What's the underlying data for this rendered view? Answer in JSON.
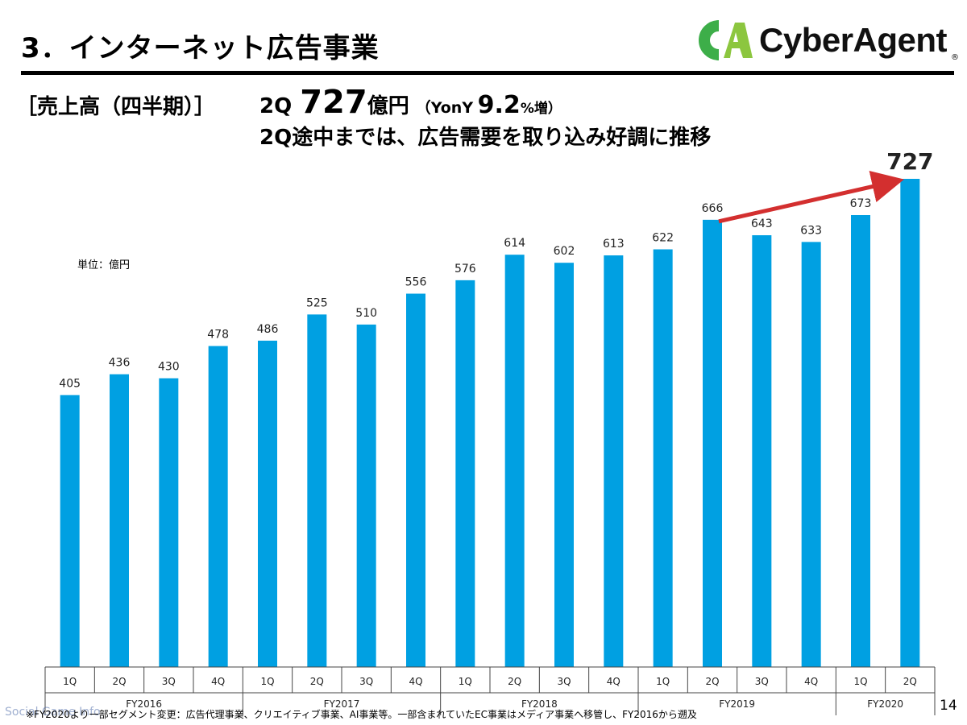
{
  "slide": {
    "title": "3．インターネット広告事業",
    "section_label": "［売上高（四半期）］",
    "headline": {
      "quarter": "2Q",
      "value": "727",
      "unit": "億円",
      "yoy_prefix": "（YonY",
      "yoy_value": "9.2",
      "yoy_suffix": "%増）"
    },
    "subheadline": "2Q途中までは、広告需要を取り込み好調に推移",
    "unit_label": "単位：億円",
    "footnote": "※FY2020より一部セグメント変更：広告代理事業、クリエイティブ事業、AI事業等。一部含まれていたEC事業はメディア事業へ移管し、FY2016から遡及",
    "watermark": "Social Game Info",
    "page_number": "14"
  },
  "logo": {
    "text": "CyberAgent",
    "mark": "CA",
    "reg": "®",
    "icon": "cyberagent-logo-icon"
  },
  "colors": {
    "bar": "#00A0E2",
    "arrow": "#D32F2F",
    "logo_green": "#3DAE49",
    "logo_lime": "#8CC63F"
  },
  "chart_data": {
    "type": "bar",
    "categories": [
      "1Q",
      "2Q",
      "3Q",
      "4Q",
      "1Q",
      "2Q",
      "3Q",
      "4Q",
      "1Q",
      "2Q",
      "3Q",
      "4Q",
      "1Q",
      "2Q",
      "3Q",
      "4Q",
      "1Q",
      "2Q"
    ],
    "groups": [
      {
        "label": "FY2016",
        "count": 4
      },
      {
        "label": "FY2017",
        "count": 4
      },
      {
        "label": "FY2018",
        "count": 4
      },
      {
        "label": "FY2019",
        "count": 4
      },
      {
        "label": "FY2020",
        "count": 2
      }
    ],
    "values": [
      405,
      436,
      430,
      478,
      486,
      525,
      510,
      556,
      576,
      614,
      602,
      613,
      622,
      666,
      643,
      633,
      673,
      727
    ],
    "ylim": [
      0,
      727
    ],
    "title": "",
    "xlabel": "",
    "ylabel": "",
    "grid": false,
    "highlight": {
      "value_index": 17,
      "arrow_from_index": 13,
      "arrow_to_index": 17
    }
  }
}
